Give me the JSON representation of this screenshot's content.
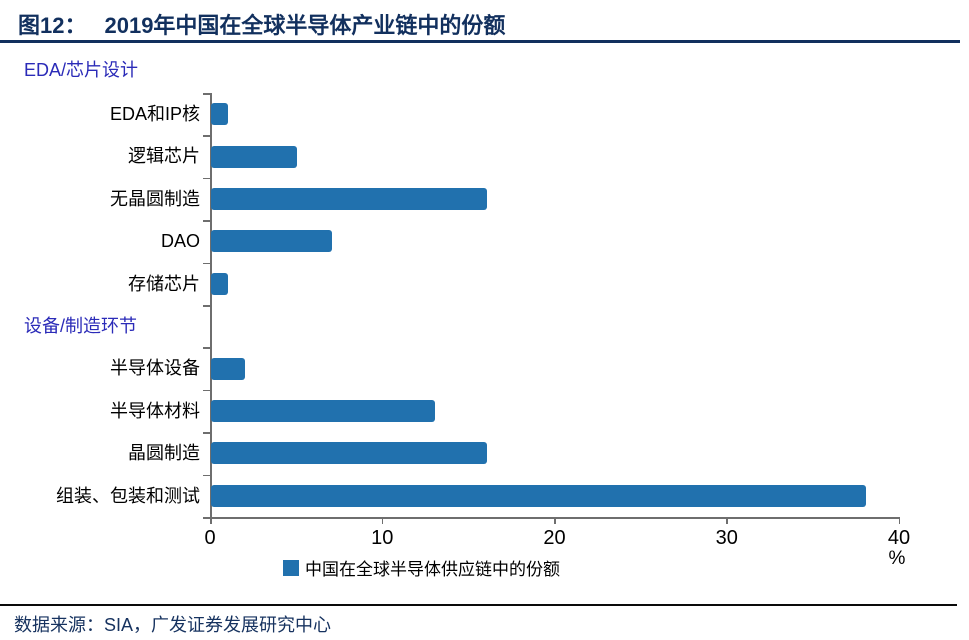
{
  "header": {
    "figure_label": "图12：",
    "title": "2019年中国在全球半导体产业链中的份额"
  },
  "chart_data": {
    "type": "bar",
    "orientation": "horizontal",
    "title": "2019年中国在全球半导体产业链中的份额",
    "xlabel": "",
    "ylabel": "",
    "unit_label": "%",
    "xlim": [
      0,
      40
    ],
    "x_ticks": [
      "0",
      "10",
      "20",
      "30",
      "40"
    ],
    "grid": false,
    "legend_position": "bottom",
    "legend": [
      {
        "label": "中国在全球半导体供应链中的份额",
        "color": "#2171AE"
      }
    ],
    "sections": [
      {
        "header": "EDA/芯片设计",
        "items": [
          {
            "label": "EDA和IP核",
            "value": 1
          },
          {
            "label": "逻辑芯片",
            "value": 5
          },
          {
            "label": "无晶圆制造",
            "value": 16
          },
          {
            "label": "DAO",
            "value": 7
          },
          {
            "label": "存储芯片",
            "value": 1
          }
        ]
      },
      {
        "header": "设备/制造环节",
        "items": [
          {
            "label": "半导体设备",
            "value": 2
          },
          {
            "label": "半导体材料",
            "value": 13
          },
          {
            "label": "晶圆制造",
            "value": 16
          },
          {
            "label": "组装、包装和测试",
            "value": 38
          }
        ]
      }
    ]
  },
  "footer": {
    "source_text": "数据来源：SIA，广发证券发展研究中心"
  },
  "colors": {
    "bar": "#2171AE",
    "title_navy": "#12305E",
    "section_header_blue": "#2B2BB8",
    "axis_gray": "#6e6e6e",
    "source_navy": "#16325F"
  }
}
